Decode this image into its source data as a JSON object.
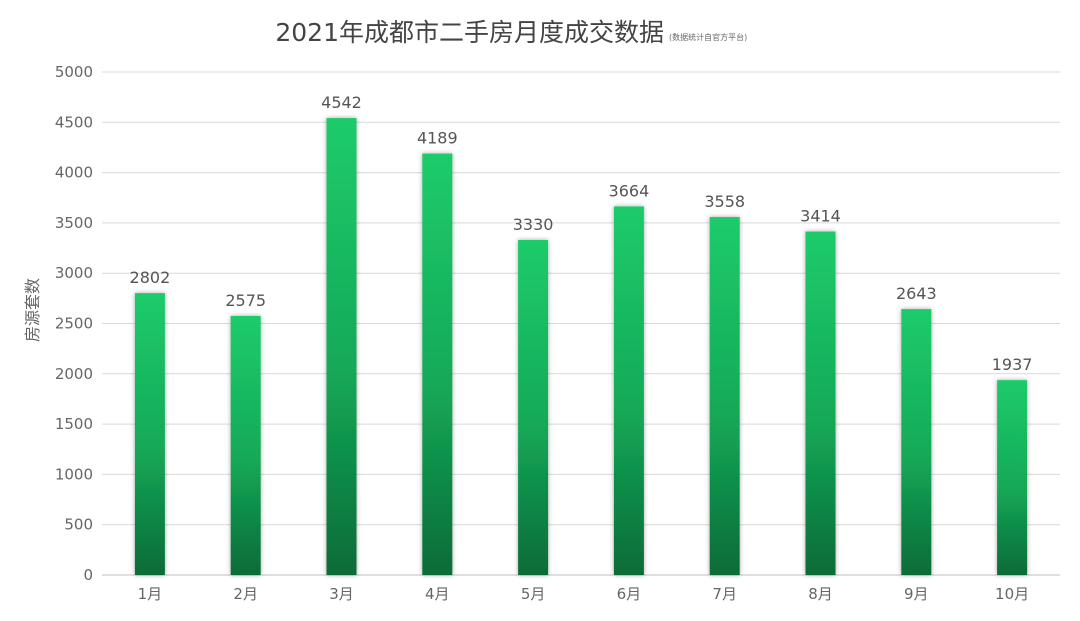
{
  "chart_data": {
    "type": "bar",
    "title": "2021年成都市二手房月度成交数据",
    "subtitle": "(数据统计自官方平台)",
    "xlabel": "",
    "ylabel": "房源套数",
    "categories": [
      "1月",
      "2月",
      "3月",
      "4月",
      "5月",
      "6月",
      "7月",
      "8月",
      "9月",
      "10月"
    ],
    "values": [
      2802,
      2575,
      4542,
      4189,
      3330,
      3664,
      3558,
      3414,
      2643,
      1937
    ],
    "ylim": [
      0,
      5000
    ],
    "yticks": [
      0,
      500,
      1000,
      1500,
      2000,
      2500,
      3000,
      3500,
      4000,
      4500,
      5000
    ],
    "grid": true,
    "data_labels": true,
    "legend": "none",
    "colors": {
      "bar_top": "#1ecb6b",
      "bar_mid": "#14a958",
      "bar_bottom": "#0b6b37",
      "grid": "#d9d9d9",
      "text": "#555555"
    }
  }
}
